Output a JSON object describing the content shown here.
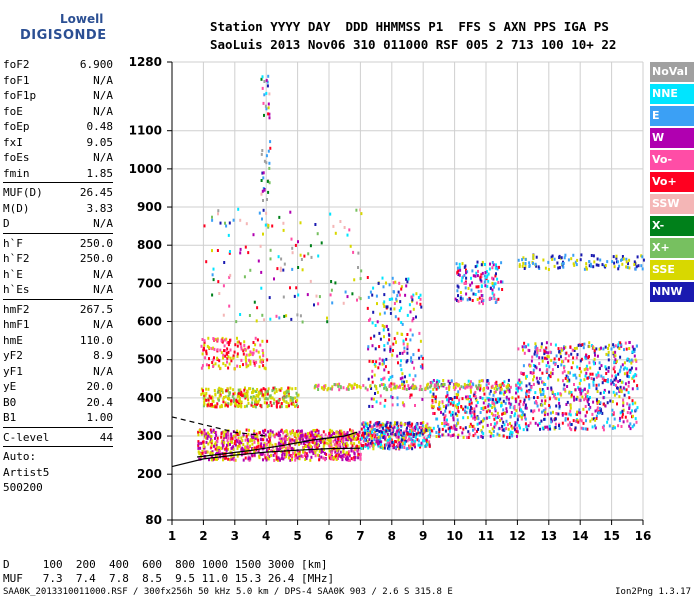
{
  "logo": {
    "line1": "Lowell",
    "line2": "DIGISONDE"
  },
  "header": {
    "line1": "Station YYYY DAY  DDD HHMMSS P1  FFS S AXN PPS IGA PS",
    "line2": "SaoLuis 2013 Nov06 310 011000 RSF 005 2 713 100 10+ 22"
  },
  "params": [
    {
      "label": "foF2",
      "value": "6.900"
    },
    {
      "label": "foF1",
      "value": "N/A"
    },
    {
      "label": "foF1p",
      "value": "N/A"
    },
    {
      "label": "foE",
      "value": "N/A"
    },
    {
      "label": "foEp",
      "value": "0.48"
    },
    {
      "label": "fxI",
      "value": "9.05"
    },
    {
      "label": "foEs",
      "value": "N/A"
    },
    {
      "label": "fmin",
      "value": "1.85"
    },
    {
      "sep": true
    },
    {
      "label": "MUF(D)",
      "value": "26.45"
    },
    {
      "label": "M(D)",
      "value": "3.83"
    },
    {
      "label": "D",
      "value": "N/A"
    },
    {
      "sep": true
    },
    {
      "label": "h`F",
      "value": "250.0"
    },
    {
      "label": "h`F2",
      "value": "250.0"
    },
    {
      "label": "h`E",
      "value": "N/A"
    },
    {
      "label": "h`Es",
      "value": "N/A"
    },
    {
      "sep": true
    },
    {
      "label": "hmF2",
      "value": "267.5"
    },
    {
      "label": "hmF1",
      "value": "N/A"
    },
    {
      "label": "hmE",
      "value": "110.0"
    },
    {
      "label": "yF2",
      "value": "8.9"
    },
    {
      "label": "yF1",
      "value": "N/A"
    },
    {
      "label": "yE",
      "value": "20.0"
    },
    {
      "label": "B0",
      "value": "20.4"
    },
    {
      "label": "B1",
      "value": "1.00"
    },
    {
      "sep": true
    },
    {
      "label": "C-level",
      "value": "44"
    },
    {
      "sep": true
    }
  ],
  "auto": {
    "line1": "Auto:",
    "line2": "Artist5",
    "line3": "500200"
  },
  "legend": [
    {
      "label": "NoVal",
      "color": "#a0a0a0"
    },
    {
      "label": "NNE",
      "color": "#00e5ff"
    },
    {
      "label": "E",
      "color": "#3ba0f5"
    },
    {
      "label": "W",
      "color": "#b000b0"
    },
    {
      "label": "Vo-",
      "color": "#ff4da6"
    },
    {
      "label": "Vo+",
      "color": "#ff0020"
    },
    {
      "label": "SSW",
      "color": "#f4b6b6"
    },
    {
      "label": "X-",
      "color": "#00801a"
    },
    {
      "label": "X+",
      "color": "#77c060"
    },
    {
      "label": "SSE",
      "color": "#d8d800"
    },
    {
      "label": "NNW",
      "color": "#1a1ab0"
    }
  ],
  "bottom": {
    "d_line": "D     100  200  400  600  800 1000 1500 3000 [km]",
    "muf_line": "MUF   7.3  7.4  7.8  8.5  9.5 11.0 15.3 26.4 [MHz]"
  },
  "footer": {
    "left": "SAA0K_2013310011000.RSF / 300fx256h 50 kHz 5.0 km / DPS-4 SAA0K 903 / 2.6 S 315.8 E",
    "right": "Ion2Png 1.3.17"
  },
  "chart_data": {
    "type": "scatter",
    "x_ticks": [
      "1",
      "2",
      "3",
      "4",
      "5",
      "6",
      "7",
      "8",
      "9",
      "10",
      "11",
      "12",
      "13",
      "14",
      "15",
      "16"
    ],
    "y_ticks": [
      "80",
      "200",
      "300",
      "400",
      "500",
      "600",
      "700",
      "800",
      "900",
      "1000",
      "1100",
      "1280"
    ],
    "xlim": [
      1,
      16
    ],
    "ylim": [
      80,
      1280
    ],
    "grid": true,
    "trace_o": {
      "x": [
        1.8,
        2.5,
        3.5,
        4.5,
        5.5,
        6.5,
        6.9
      ],
      "y": [
        245,
        252,
        262,
        275,
        290,
        300,
        310
      ]
    },
    "trace_virtual": {
      "x": [
        1.0,
        2.0,
        3.0,
        4.0,
        5.0,
        6.0,
        7.0
      ],
      "y": [
        220,
        240,
        250,
        258,
        263,
        267,
        268
      ]
    },
    "trace_profile_dashed": {
      "x": [
        1.0,
        2.0,
        3.0,
        4.0
      ],
      "y": [
        350,
        330,
        310,
        300
      ]
    }
  }
}
